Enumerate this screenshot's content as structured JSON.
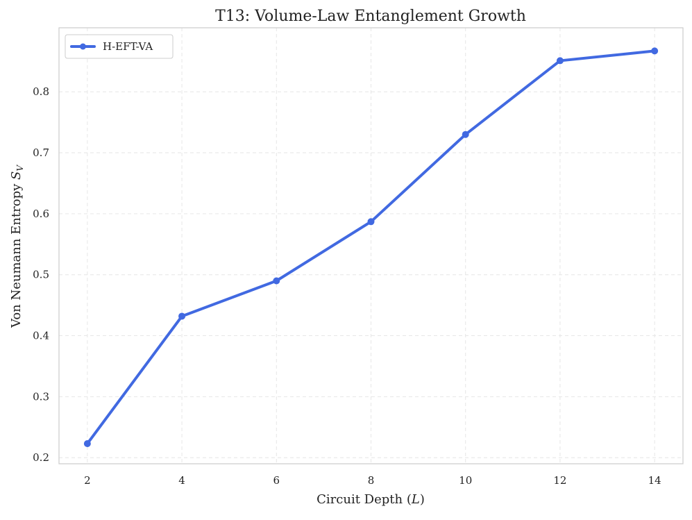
{
  "chart_data": {
    "type": "line",
    "title": "T13: Volume-Law Entanglement Growth",
    "xlabel_text": "Circuit Depth (",
    "xlabel_symbol": "L",
    "xlabel_close": ")",
    "ylabel_text": "Von Neumann Entropy ",
    "ylabel_symbol": "S",
    "ylabel_subscript": "V",
    "xlim": [
      1.4,
      14.6
    ],
    "ylim": [
      0.19,
      0.905
    ],
    "xticks": [
      2,
      4,
      6,
      8,
      10,
      12,
      14
    ],
    "yticks": [
      0.2,
      0.3,
      0.4,
      0.5,
      0.6,
      0.7,
      0.8
    ],
    "ytick_labels": [
      "0.2",
      "0.3",
      "0.4",
      "0.5",
      "0.6",
      "0.7",
      "0.8"
    ],
    "grid": true,
    "legend_position": "top-left",
    "series": [
      {
        "name": "H-EFT-VA",
        "color": "#4169e1",
        "x": [
          2,
          4,
          6,
          8,
          10,
          12,
          14
        ],
        "values": [
          0.223,
          0.432,
          0.49,
          0.587,
          0.73,
          0.851,
          0.867
        ]
      }
    ]
  }
}
